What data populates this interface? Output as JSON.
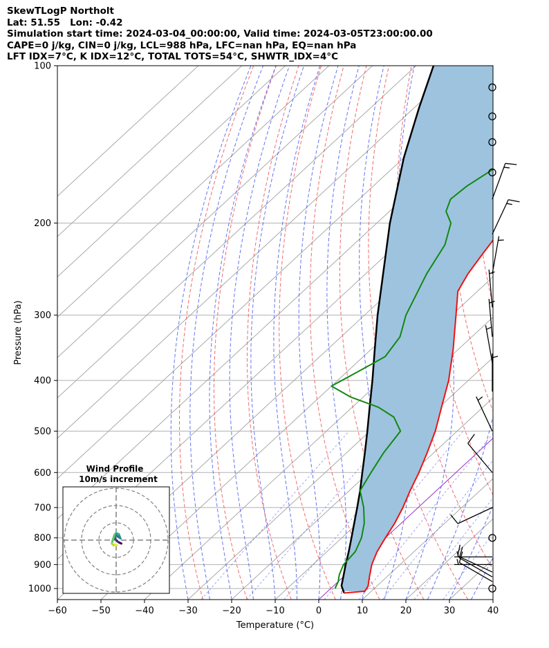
{
  "header": {
    "line1": "SkewTLogP Northolt",
    "line2": "Lat: 51.55   Lon: -0.42",
    "line3": "Simulation start time: 2024-03-04_00:00:00, Valid time: 2024-03-05T23:00:00.00",
    "line4": "CAPE=0 j/kg, CIN=0 j/kg, LCL=988 hPa, LFC=nan hPa, EQ=nan hPa",
    "line5": "LFT IDX=7°C, K IDX=12°C, TOTAL TOTS=54°C, SHWTR_IDX=4°C"
  },
  "chart_data": {
    "type": "skewt",
    "xlabel": "Temperature (°C)",
    "ylabel": "Pressure (hPa)",
    "xlim": [
      -60,
      40
    ],
    "ylim": [
      1050,
      100
    ],
    "x_ticks": [
      "−60",
      "−50",
      "−40",
      "−30",
      "−20",
      "−10",
      "0",
      "10",
      "20",
      "30",
      "40"
    ],
    "y_ticks": [
      "100",
      "200",
      "300",
      "400",
      "500",
      "600",
      "700",
      "800",
      "900",
      "1000"
    ],
    "y_tick_values": [
      100,
      200,
      300,
      400,
      500,
      600,
      700,
      800,
      900,
      1000
    ],
    "grid": true,
    "colors": {
      "temperature": "#ee1111",
      "dewpoint": "#118811",
      "parcel": "#000000",
      "cape_fill": "#9ec3de",
      "dry_adiabat": "#f05050",
      "moist_adiabat": "#4a5af0",
      "mixing_ratio": "#4a5af0",
      "isotherm": "#a9a9a9",
      "zero_isotherm": "#9b30c8"
    },
    "temperature_profile": [
      {
        "p": 1020,
        "t": 4.2
      },
      {
        "p": 1012,
        "t": 8.5
      },
      {
        "p": 990,
        "t": 8.0
      },
      {
        "p": 950,
        "t": 6.0
      },
      {
        "p": 900,
        "t": 3.5
      },
      {
        "p": 850,
        "t": 1.5
      },
      {
        "p": 800,
        "t": 0.0
      },
      {
        "p": 750,
        "t": -1.5
      },
      {
        "p": 700,
        "t": -3.5
      },
      {
        "p": 650,
        "t": -6.0
      },
      {
        "p": 600,
        "t": -8.5
      },
      {
        "p": 550,
        "t": -11.5
      },
      {
        "p": 500,
        "t": -15.0
      },
      {
        "p": 450,
        "t": -19.5
      },
      {
        "p": 400,
        "t": -24.5
      },
      {
        "p": 350,
        "t": -31.0
      },
      {
        "p": 300,
        "t": -39.0
      },
      {
        "p": 270,
        "t": -44.5
      },
      {
        "p": 250,
        "t": -46.5
      },
      {
        "p": 230,
        "t": -48.0
      },
      {
        "p": 210,
        "t": -49.5
      },
      {
        "p": 200,
        "t": -50.0
      },
      {
        "p": 180,
        "t": -50.0
      },
      {
        "p": 160,
        "t": -49.0
      },
      {
        "p": 140,
        "t": -48.0
      },
      {
        "p": 120,
        "t": -48.5
      },
      {
        "p": 110,
        "t": -50.0
      },
      {
        "p": 100,
        "t": -50.5
      }
    ],
    "dewpoint_profile": [
      {
        "p": 1000,
        "t": 1.0
      },
      {
        "p": 970,
        "t": 0.0
      },
      {
        "p": 940,
        "t": -1.5
      },
      {
        "p": 900,
        "t": -3.0
      },
      {
        "p": 850,
        "t": -3.5
      },
      {
        "p": 800,
        "t": -5.5
      },
      {
        "p": 750,
        "t": -8.5
      },
      {
        "p": 700,
        "t": -12.5
      },
      {
        "p": 650,
        "t": -17.5
      },
      {
        "p": 600,
        "t": -19.5
      },
      {
        "p": 550,
        "t": -21.5
      },
      {
        "p": 500,
        "t": -23.0
      },
      {
        "p": 470,
        "t": -28.0
      },
      {
        "p": 450,
        "t": -34.0
      },
      {
        "p": 430,
        "t": -43.0
      },
      {
        "p": 410,
        "t": -50.0
      },
      {
        "p": 380,
        "t": -47.0
      },
      {
        "p": 360,
        "t": -45.0
      },
      {
        "p": 330,
        "t": -46.5
      },
      {
        "p": 300,
        "t": -50.5
      },
      {
        "p": 250,
        "t": -56.0
      },
      {
        "p": 220,
        "t": -59.0
      },
      {
        "p": 200,
        "t": -63.0
      },
      {
        "p": 190,
        "t": -67.0
      },
      {
        "p": 180,
        "t": -69.0
      },
      {
        "p": 170,
        "t": -68.5
      },
      {
        "p": 160,
        "t": -67.0
      },
      {
        "p": 150,
        "t": -65.5
      },
      {
        "p": 140,
        "t": -64.0
      },
      {
        "p": 130,
        "t": -62.5
      },
      {
        "p": 120,
        "t": -61.0
      },
      {
        "p": 110,
        "t": -59.5
      },
      {
        "p": 100,
        "t": -58.0
      }
    ],
    "parcel_profile": [
      {
        "p": 1020,
        "t": 4.2
      },
      {
        "p": 988,
        "t": 1.8
      },
      {
        "p": 950,
        "t": 0.0
      },
      {
        "p": 900,
        "t": -2.5
      },
      {
        "p": 850,
        "t": -5.0
      },
      {
        "p": 800,
        "t": -7.8
      },
      {
        "p": 750,
        "t": -10.8
      },
      {
        "p": 700,
        "t": -14.0
      },
      {
        "p": 650,
        "t": -17.5
      },
      {
        "p": 600,
        "t": -21.5
      },
      {
        "p": 550,
        "t": -25.8
      },
      {
        "p": 500,
        "t": -30.6
      },
      {
        "p": 450,
        "t": -36.0
      },
      {
        "p": 400,
        "t": -42.0
      },
      {
        "p": 350,
        "t": -49.0
      },
      {
        "p": 300,
        "t": -57.0
      },
      {
        "p": 250,
        "t": -66.0
      },
      {
        "p": 200,
        "t": -77.0
      },
      {
        "p": 150,
        "t": -90.0
      },
      {
        "p": 120,
        "t": -99.0
      },
      {
        "p": 100,
        "t": -106.0
      }
    ],
    "wind_barbs": [
      {
        "p": 1000,
        "speed_kt": 0,
        "dir_deg": 0
      },
      {
        "p": 970,
        "speed_kt": 10,
        "dir_deg": 300
      },
      {
        "p": 950,
        "speed_kt": 10,
        "dir_deg": 300
      },
      {
        "p": 930,
        "speed_kt": 10,
        "dir_deg": 295
      },
      {
        "p": 900,
        "speed_kt": 5,
        "dir_deg": 270
      },
      {
        "p": 870,
        "speed_kt": 5,
        "dir_deg": 270
      },
      {
        "p": 800,
        "speed_kt": 0,
        "dir_deg": 0
      },
      {
        "p": 700,
        "speed_kt": 10,
        "dir_deg": 245
      },
      {
        "p": 600,
        "speed_kt": 10,
        "dir_deg": 320
      },
      {
        "p": 500,
        "speed_kt": 5,
        "dir_deg": 335
      },
      {
        "p": 420,
        "speed_kt": 5,
        "dir_deg": 0
      },
      {
        "p": 370,
        "speed_kt": 5,
        "dir_deg": 350
      },
      {
        "p": 330,
        "speed_kt": 5,
        "dir_deg": 355
      },
      {
        "p": 290,
        "speed_kt": 5,
        "dir_deg": 355
      },
      {
        "p": 250,
        "speed_kt": 5,
        "dir_deg": 10
      },
      {
        "p": 210,
        "speed_kt": 15,
        "dir_deg": 25
      },
      {
        "p": 180,
        "speed_kt": 15,
        "dir_deg": 20
      },
      {
        "p": 160,
        "speed_kt": 0,
        "dir_deg": 0
      },
      {
        "p": 140,
        "speed_kt": 0,
        "dir_deg": 0
      },
      {
        "p": 125,
        "speed_kt": 0,
        "dir_deg": 0
      },
      {
        "p": 110,
        "speed_kt": 0,
        "dir_deg": 0
      }
    ],
    "hodograph": {
      "title_line1": "Wind Profile",
      "title_line2": "10m/s increment",
      "rings_ms": [
        10,
        20,
        30
      ],
      "trace": [
        {
          "u": 3.0,
          "v": -2.0
        },
        {
          "u": 2.0,
          "v": -1.5
        },
        {
          "u": 1.0,
          "v": -1.0
        },
        {
          "u": 0.5,
          "v": -0.5
        },
        {
          "u": -0.5,
          "v": 0.5
        },
        {
          "u": -1.0,
          "v": 2.0
        },
        {
          "u": 0.0,
          "v": 3.0
        },
        {
          "u": 1.0,
          "v": 2.0
        },
        {
          "u": 2.5,
          "v": 1.0
        },
        {
          "u": 1.5,
          "v": 3.5
        },
        {
          "u": 0.0,
          "v": 4.0
        },
        {
          "u": -1.0,
          "v": 3.0
        },
        {
          "u": -2.0,
          "v": 0.0
        },
        {
          "u": -2.5,
          "v": -2.0
        },
        {
          "u": -1.5,
          "v": -3.0
        },
        {
          "u": -0.5,
          "v": -2.5
        },
        {
          "u": 0.5,
          "v": -3.0
        }
      ]
    }
  }
}
